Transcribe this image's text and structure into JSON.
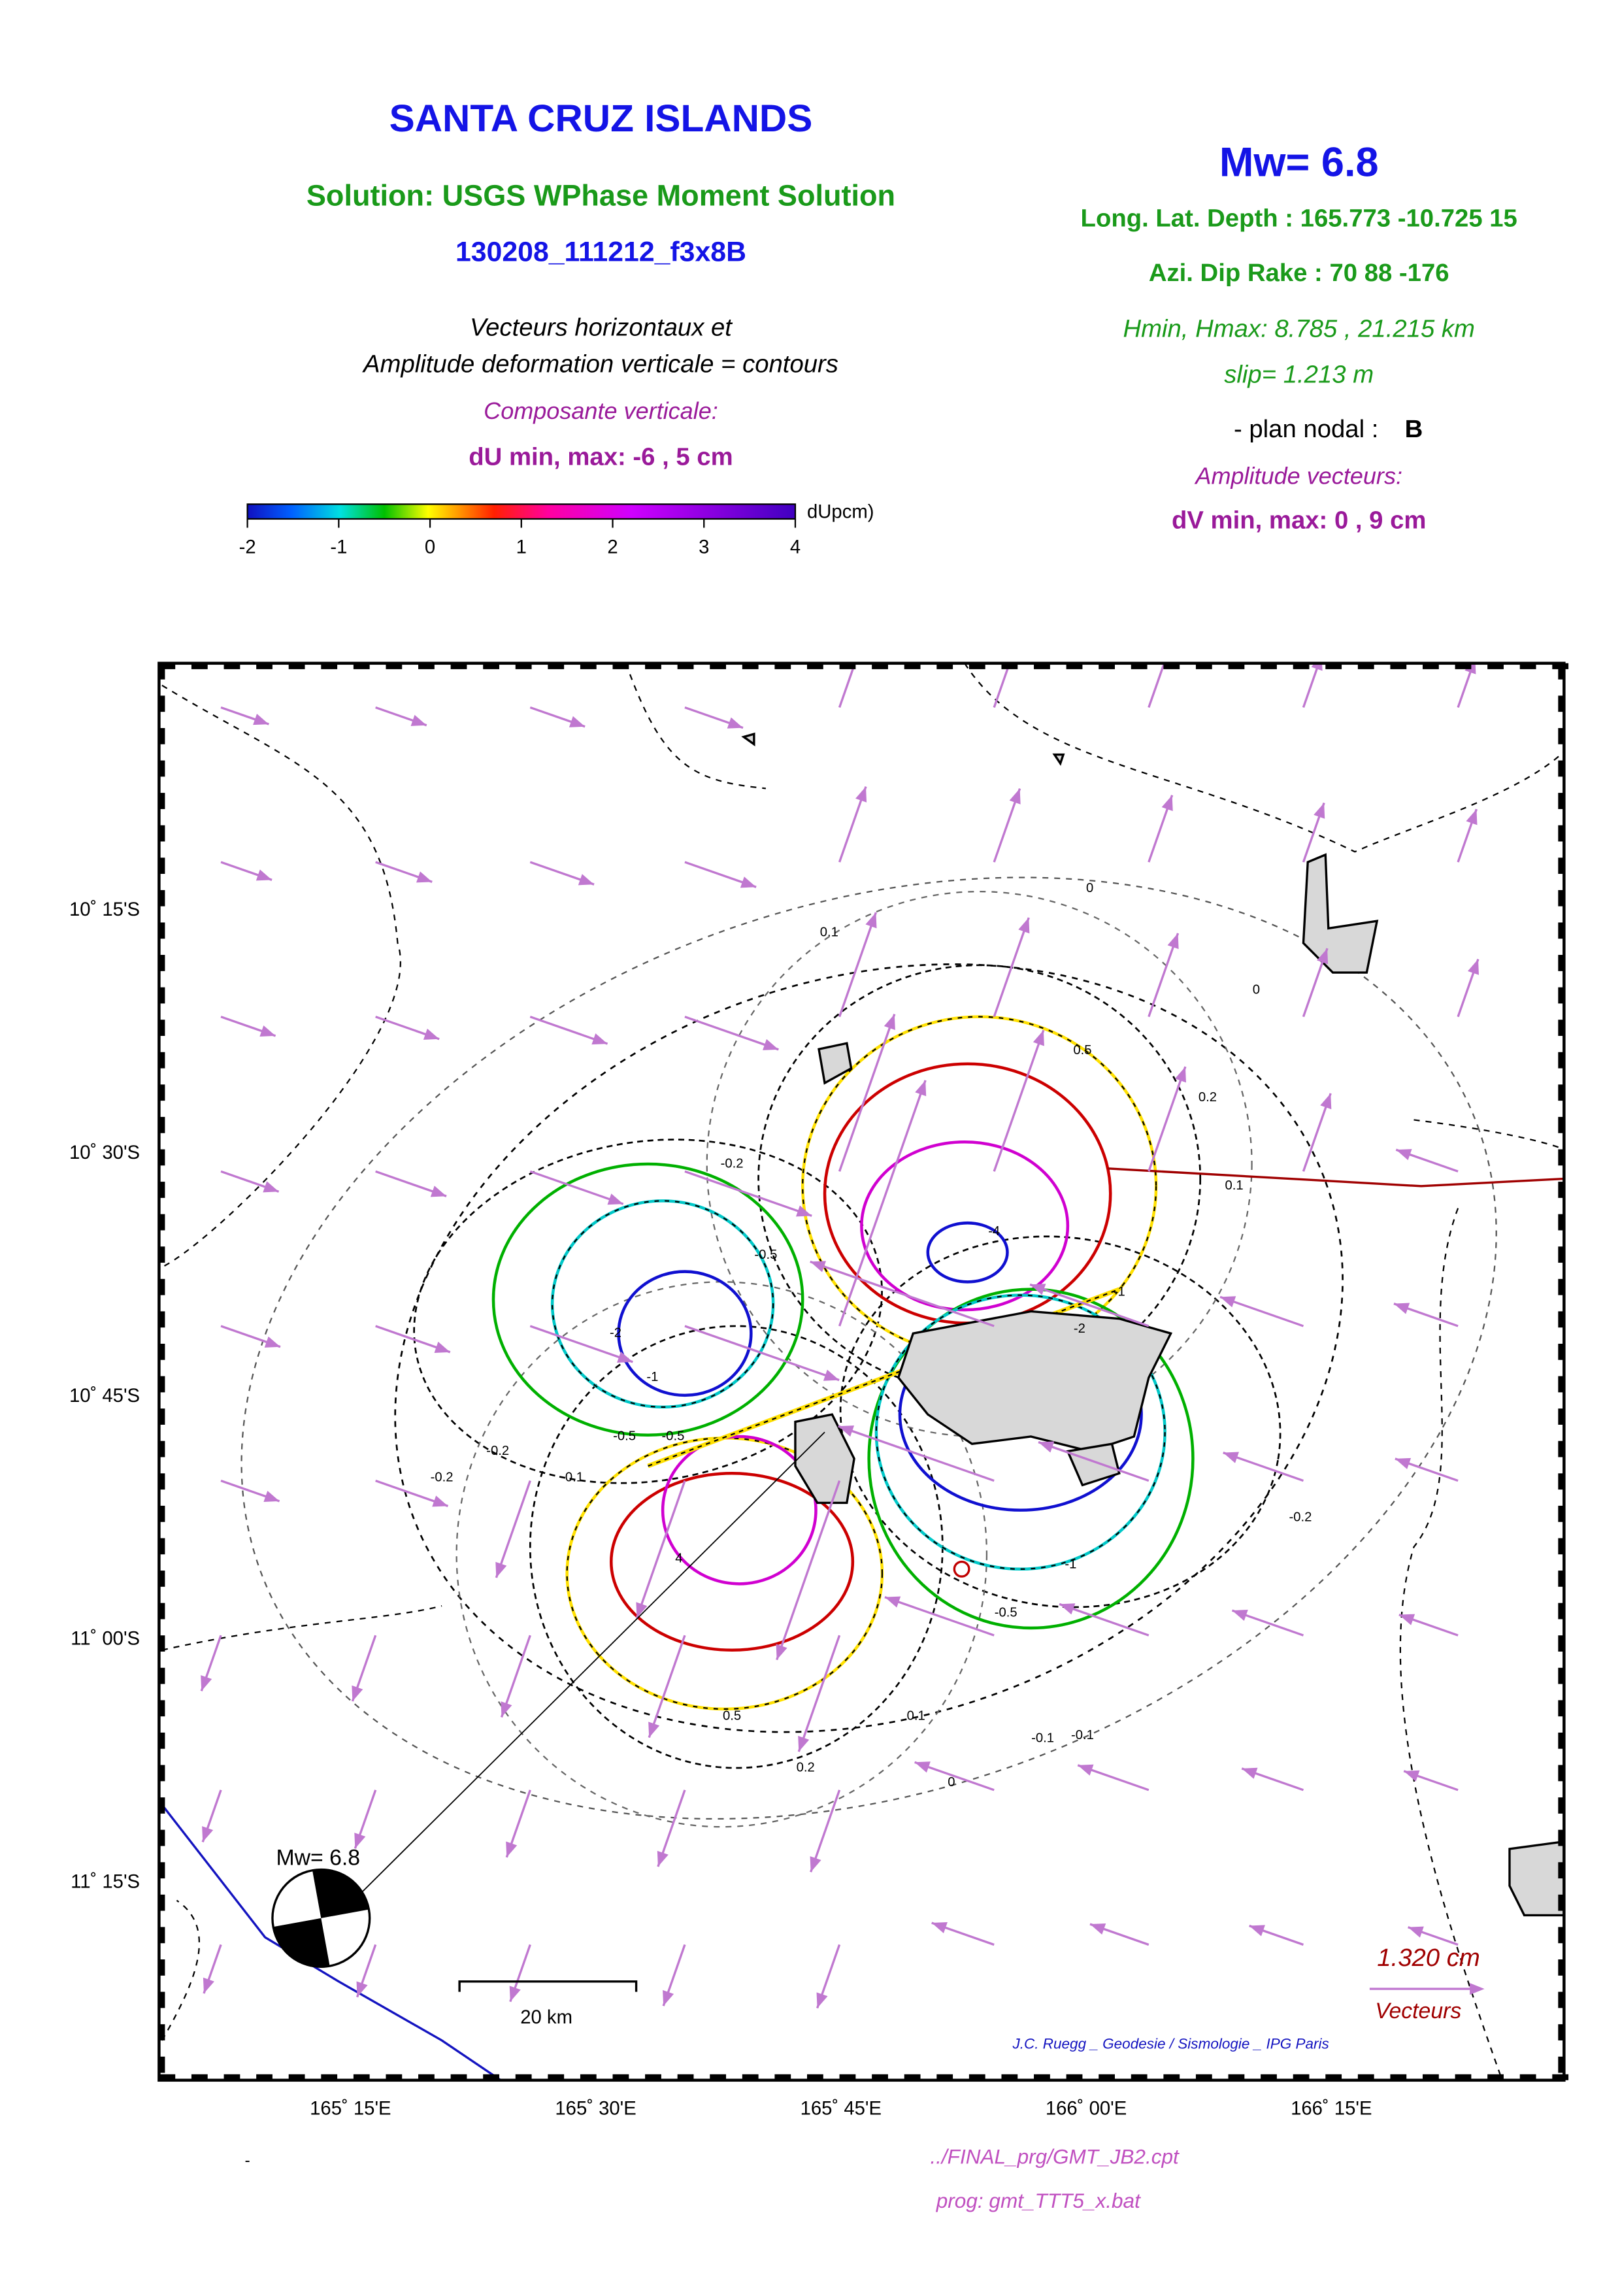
{
  "header": {
    "title": "SANTA CRUZ ISLANDS",
    "solution": "Solution: USGS WPhase Moment Solution",
    "event_id": "130208_111212_f3x8B",
    "caption": [
      "Vecteurs horizontaux et",
      "Amplitude deformation verticale = contours"
    ],
    "vertical_component": "Composante verticale:",
    "du_range": "dU min, max:  -6 , 5 cm"
  },
  "colorbar": {
    "ticks": [
      -2,
      -1,
      0,
      1,
      2,
      3,
      4
    ],
    "unit": "dUpcm)"
  },
  "parameters": {
    "magnitude": "Mw= 6.8",
    "location": "Long. Lat. Depth : 165.773 -10.725 15",
    "mechanism": "Azi.  Dip   Rake :  70 88 -176",
    "depth_range": "Hmin, Hmax:  8.785 , 21.215 km",
    "slip": "slip= 1.213 m",
    "nodal_plane_label": "- plan nodal :",
    "nodal_plane": "B",
    "vector_amplitude": "Amplitude vecteurs:",
    "dv_range": "dV min, max:  0 , 9 cm"
  },
  "map": {
    "lat_labels": [
      "10˚ 15'S",
      "10˚ 30'S",
      "10˚ 45'S",
      "11˚ 00'S",
      "11˚ 15'S"
    ],
    "lon_labels": [
      "165˚ 15'E",
      "165˚ 30'E",
      "165˚ 45'E",
      "166˚ 00'E",
      "166˚ 15'E"
    ],
    "beachball_label": "Mw= 6.8",
    "scale_label": "20 km",
    "vector_scale": "1.320  cm",
    "vector_label": "Vecteurs",
    "credit": "J.C. Ruegg _ Geodesie / Sismologie _ IPG Paris",
    "contour_labels": [
      "0",
      "0.1",
      "0",
      "0.5",
      "0.2",
      "0.1",
      "-0.2",
      "-0.5",
      "-2",
      "-4",
      "-2",
      "-1",
      "-0.5",
      "-0.2",
      "0.1",
      "-1",
      "-0.5",
      "-0.1",
      "0.5",
      "0.2",
      "0.1",
      "0",
      "-0.2",
      "-0.2",
      "-0.1",
      "-1",
      "-0.5",
      "4"
    ]
  },
  "footer": {
    "dash": "-",
    "cpt": "../FINAL_prg/GMT_JB2.cpt",
    "prog": "prog: gmt_TTT5_x.bat"
  }
}
